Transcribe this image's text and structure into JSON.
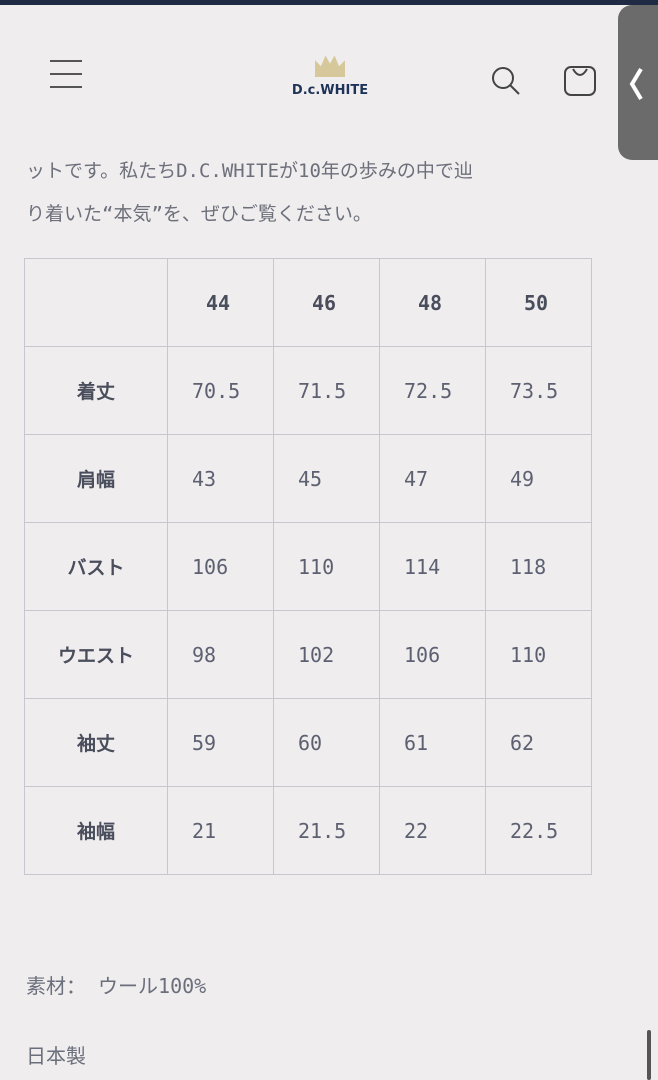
{
  "header": {
    "logo_text": "D.c.WHITE"
  },
  "intro": {
    "line1": "ットです。私たちD.C.WHITEが10年の歩みの中で辿",
    "line2": "り着いた“本気”を、ぜひご覧ください。"
  },
  "size_table": {
    "columns": [
      "",
      "44",
      "46",
      "48",
      "50"
    ],
    "rows": [
      {
        "label": "着丈",
        "values": [
          "70.5",
          "71.5",
          "72.5",
          "73.5"
        ]
      },
      {
        "label": "肩幅",
        "values": [
          "43",
          "45",
          "47",
          "49"
        ]
      },
      {
        "label": "バスト",
        "values": [
          "106",
          "110",
          "114",
          "118"
        ]
      },
      {
        "label": "ウエスト",
        "values": [
          "98",
          "102",
          "106",
          "110"
        ]
      },
      {
        "label": "袖丈",
        "values": [
          "59",
          "60",
          "61",
          "62"
        ]
      },
      {
        "label": "袖幅",
        "values": [
          "21",
          "21.5",
          "22",
          "22.5"
        ]
      }
    ]
  },
  "material": "素材： ウール100%",
  "origin": "日本製"
}
